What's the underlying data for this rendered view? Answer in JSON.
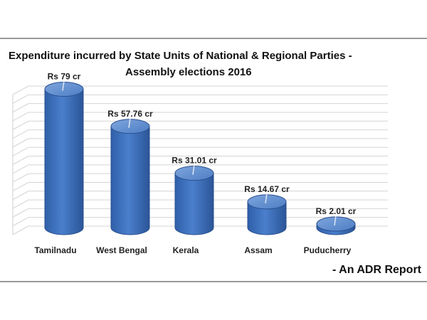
{
  "chart_data": {
    "type": "bar",
    "title_line1": "Expenditure incurred by State Units of National & Regional Parties -",
    "title_line2": "Assembly elections 2016",
    "categories": [
      "Tamilnadu",
      "West Bengal",
      "Kerala",
      "Assam",
      "Puducherry"
    ],
    "values": [
      79,
      57.76,
      31.01,
      14.67,
      2.01
    ],
    "data_labels": [
      "Rs 79 cr",
      "Rs 57.76 cr",
      "Rs 31.01 cr",
      "Rs 14.67 cr",
      "Rs 2.01 cr"
    ],
    "xlabel": "",
    "ylabel": "",
    "ylim": [
      0,
      80
    ],
    "grid": true,
    "legend": "none",
    "bar_color": "#3F72BE",
    "bar_top_color": "#6F98D6"
  },
  "footer": {
    "source": "- An ADR Report"
  }
}
